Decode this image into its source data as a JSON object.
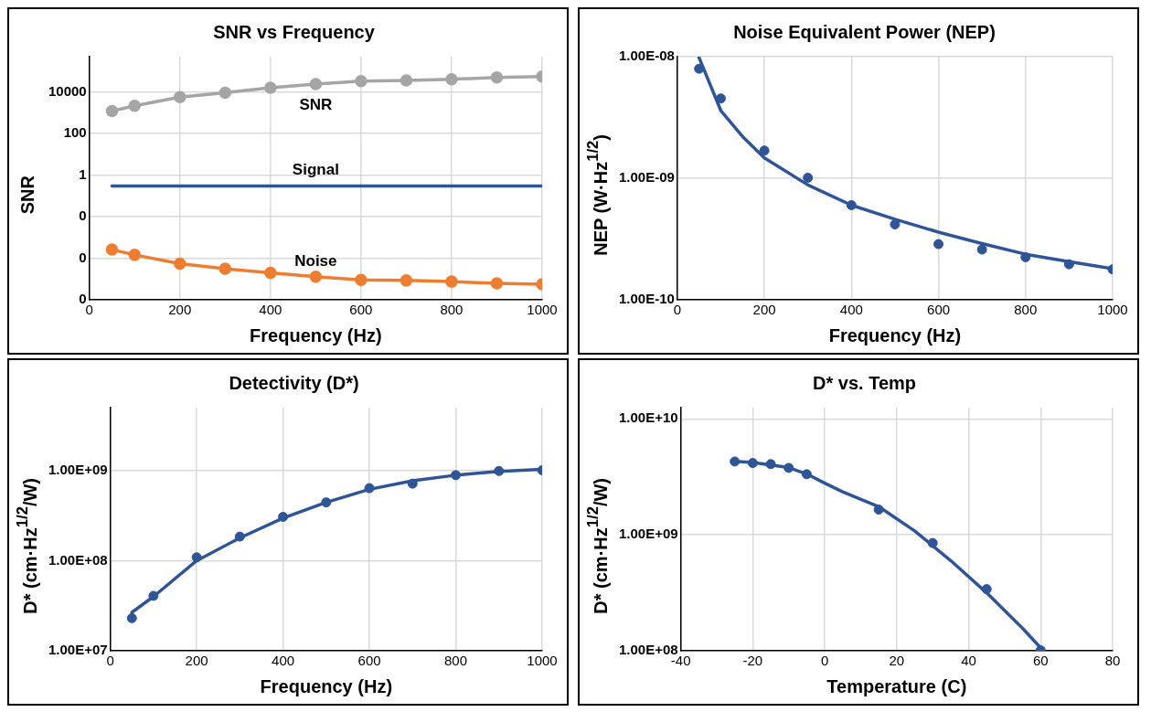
{
  "chart_data": [
    {
      "type": "line",
      "title": "SNR vs Frequency",
      "xlabel": "Frequency (Hz)",
      "ylabel": "SNR",
      "x": [
        50,
        100,
        200,
        300,
        400,
        500,
        600,
        700,
        800,
        900,
        1000
      ],
      "xlim": [
        0,
        1000
      ],
      "xticks": [
        0,
        200,
        400,
        600,
        800,
        1000
      ],
      "log": "y",
      "ylim": [
        1e-06,
        500000
      ],
      "yticks": [
        {
          "value": 1e-06,
          "label": "0"
        },
        {
          "value": 0.0001,
          "label": "0"
        },
        {
          "value": 0.01,
          "label": "0"
        },
        {
          "value": 1,
          "label": "1"
        },
        100,
        10000
      ],
      "grid": true,
      "legend": false,
      "marker": "circle",
      "series": [
        {
          "name": "SNR",
          "color": "#a5a5a5",
          "values": [
            1200,
            2150,
            5700,
            9200,
            16000,
            24000,
            33000,
            36000,
            41000,
            50000,
            55000
          ]
        },
        {
          "name": "Signal",
          "color": "#2f5597",
          "marker": "none",
          "values": [
            0.3,
            0.3,
            0.3,
            0.3,
            0.3,
            0.3,
            0.3,
            0.3,
            0.3,
            0.3,
            0.3
          ]
        },
        {
          "name": "Noise",
          "color": "#ed7d31",
          "values": [
            0.00026,
            0.000145,
            5.5e-05,
            3.1e-05,
            2e-05,
            1.3e-05,
            9.1e-06,
            8.5e-06,
            7.5e-06,
            6.2e-06,
            5.6e-06
          ]
        }
      ]
    },
    {
      "type": "scatter",
      "title": "Noise Equivalent Power (NEP)",
      "xlabel": "Frequency (Hz)",
      "ylabel": "NEP (W·Hz$^{1/2}$)",
      "xlim": [
        0,
        1000
      ],
      "xticks": [
        0,
        200,
        400,
        600,
        800,
        1000
      ],
      "log": "y",
      "ylim": [
        1e-10,
        1e-08
      ],
      "yticks": [
        {
          "value": 1e-10,
          "label": "1.00E-10"
        },
        {
          "value": 1e-09,
          "label": "1.00E-09"
        },
        {
          "value": 1e-08,
          "label": "1.00E-08"
        }
      ],
      "grid": true,
      "legend": false,
      "marker": "circle",
      "series": [
        {
          "color": "#2f5597",
          "x": [
            50,
            100,
            200,
            300,
            400,
            500,
            600,
            700,
            800,
            900,
            1000
          ],
          "values": [
            7.96e-09,
            4.53e-09,
            1.69e-09,
            1.01e-09,
            6e-10,
            4.17e-10,
            2.87e-10,
            2.59e-10,
            2.24e-10,
            1.96e-10,
            1.78e-10
          ]
        },
        {
          "type": "line",
          "marker": "none",
          "color": "#2f5597",
          "x": [
            50,
            100,
            150,
            200,
            300,
            400,
            500,
            600,
            700,
            800,
            900,
            1000
          ],
          "values": [
            9.8e-09,
            3.6e-09,
            2.2e-09,
            1.47e-09,
            8.8e-10,
            6e-10,
            4.6e-10,
            3.6e-10,
            2.9e-10,
            2.37e-10,
            2.06e-10,
            1.8e-10
          ]
        }
      ]
    },
    {
      "type": "scatter",
      "title": "Detectivity (D*)",
      "xlabel": "Frequency (Hz)",
      "ylabel": "D* (cm·Hz$^{1/2}$/W)",
      "xlim": [
        0,
        1000
      ],
      "xticks": [
        0,
        200,
        400,
        600,
        800,
        1000
      ],
      "log": "y",
      "ylim": [
        10000000.0,
        5000000000.0
      ],
      "yticks": [
        {
          "value": 10000000.0,
          "label": "1.00E+07"
        },
        {
          "value": 100000000.0,
          "label": "1.00E+08"
        },
        {
          "value": 1000000000.0,
          "label": "1.00E+09"
        }
      ],
      "grid": true,
      "legend": false,
      "marker": "circle",
      "series": [
        {
          "color": "#2f5597",
          "x": [
            50,
            100,
            200,
            300,
            400,
            500,
            600,
            700,
            800,
            900,
            1000
          ],
          "values": [
            23000000.0,
            40700000.0,
            109000000.0,
            185000000.0,
            306000000.0,
            444000000.0,
            638000000.0,
            716000000.0,
            890000000.0,
            990000000.0,
            1010000000.0
          ]
        },
        {
          "type": "line",
          "marker": "none",
          "color": "#2f5597",
          "x": [
            50,
            100,
            200,
            300,
            400,
            500,
            600,
            700,
            800,
            900,
            1000
          ],
          "values": [
            26700000.0,
            39900000.0,
            100000000.0,
            179000000.0,
            297000000.0,
            444000000.0,
            620000000.0,
            770000000.0,
            890000000.0,
            980000000.0,
            1030000000.0
          ]
        }
      ]
    },
    {
      "type": "scatter",
      "title": "D* vs. Temp",
      "xlabel": "Temperature (C)",
      "ylabel": "D* (cm·Hz$^{1/2}$/W)",
      "xlim": [
        -40,
        80
      ],
      "xticks": [
        -40,
        -20,
        0,
        20,
        40,
        60,
        80
      ],
      "log": "y",
      "ylim": [
        100000000.0,
        12500000000.0
      ],
      "yticks": [
        {
          "value": 100000000.0,
          "label": "1.00E+08"
        },
        {
          "value": 1000000000.0,
          "label": "1.00E+09"
        },
        {
          "value": 10000000000.0,
          "label": "1.00E+10"
        }
      ],
      "grid": true,
      "legend": false,
      "marker": "circle",
      "series": [
        {
          "color": "#2f5597",
          "x": [
            -25,
            -20,
            -15,
            -10,
            -5,
            15,
            30,
            45,
            60
          ],
          "values": [
            4290000000.0,
            4160000000.0,
            4070000000.0,
            3780000000.0,
            3330000000.0,
            1650000000.0,
            850000000.0,
            340000000.0,
            101000000.0
          ]
        },
        {
          "type": "line",
          "marker": "none",
          "color": "#2f5597",
          "x": [
            -25,
            -20,
            -15,
            -10,
            -5,
            0,
            5,
            15,
            25,
            35,
            45,
            55,
            60
          ],
          "values": [
            4300000000.0,
            4200000000.0,
            4000000000.0,
            3800000000.0,
            3350000000.0,
            2790000000.0,
            2350000000.0,
            1750000000.0,
            1080000000.0,
            600000000.0,
            316000000.0,
            156000000.0,
            106000000.0
          ]
        }
      ]
    }
  ]
}
